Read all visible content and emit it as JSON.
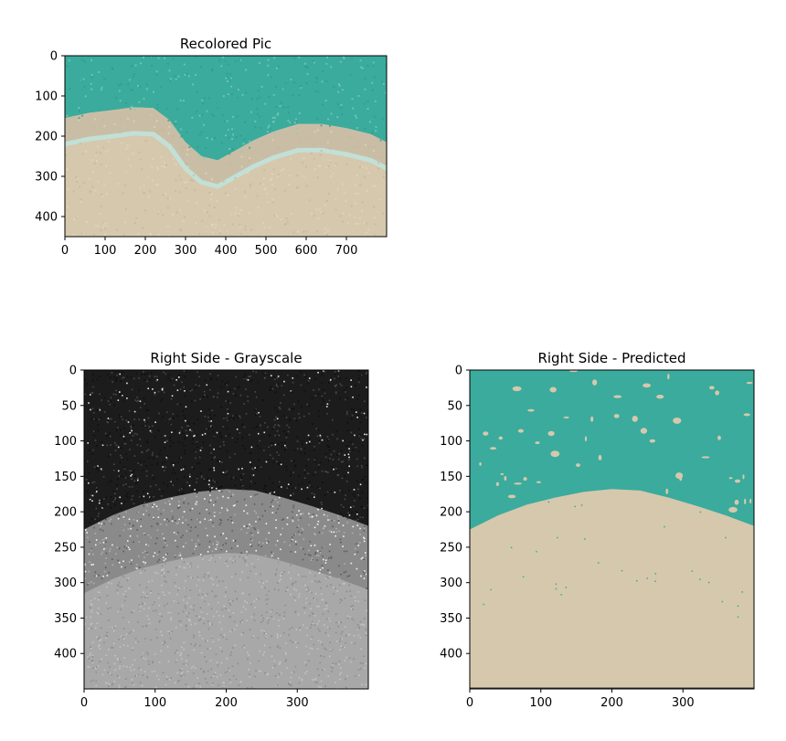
{
  "colors": {
    "water": "#3aab9c",
    "sand": "#d6c8ad",
    "foam": "#bfe6df",
    "wet_sand": "#c9bea5",
    "gray_dark": "#1c1c1c",
    "gray_light": "#a8a8a8"
  },
  "chart_data": [
    {
      "type": "image",
      "title": "Recolored Pic",
      "xlim": [
        0,
        800
      ],
      "ylim": [
        450,
        0
      ],
      "xticks": [
        0,
        100,
        200,
        300,
        400,
        500,
        600,
        700
      ],
      "yticks": [
        0,
        100,
        200,
        300,
        400
      ],
      "shoreline_y": [
        [
          0,
          225
        ],
        [
          60,
          212
        ],
        [
          120,
          205
        ],
        [
          170,
          198
        ],
        [
          220,
          200
        ],
        [
          260,
          230
        ],
        [
          300,
          285
        ],
        [
          340,
          320
        ],
        [
          380,
          330
        ],
        [
          420,
          308
        ],
        [
          470,
          280
        ],
        [
          520,
          258
        ],
        [
          580,
          240
        ],
        [
          640,
          240
        ],
        [
          700,
          250
        ],
        [
          760,
          265
        ],
        [
          800,
          285
        ]
      ]
    },
    {
      "type": "image",
      "title": "Right Side - Grayscale",
      "xlim": [
        0,
        400
      ],
      "ylim": [
        450,
        0
      ],
      "xticks": [
        0,
        100,
        200,
        300
      ],
      "yticks": [
        0,
        50,
        100,
        150,
        200,
        250,
        300,
        350,
        400
      ]
    },
    {
      "type": "image",
      "title": "Right Side - Predicted",
      "xlim": [
        0,
        400
      ],
      "ylim": [
        450,
        0
      ],
      "xticks": [
        0,
        100,
        200,
        300
      ],
      "yticks": [
        0,
        50,
        100,
        150,
        200,
        250,
        300,
        350,
        400
      ],
      "boundary_y": [
        [
          0,
          225
        ],
        [
          40,
          205
        ],
        [
          80,
          190
        ],
        [
          120,
          180
        ],
        [
          160,
          172
        ],
        [
          200,
          168
        ],
        [
          240,
          170
        ],
        [
          280,
          180
        ],
        [
          320,
          192
        ],
        [
          360,
          205
        ],
        [
          400,
          220
        ]
      ]
    }
  ]
}
